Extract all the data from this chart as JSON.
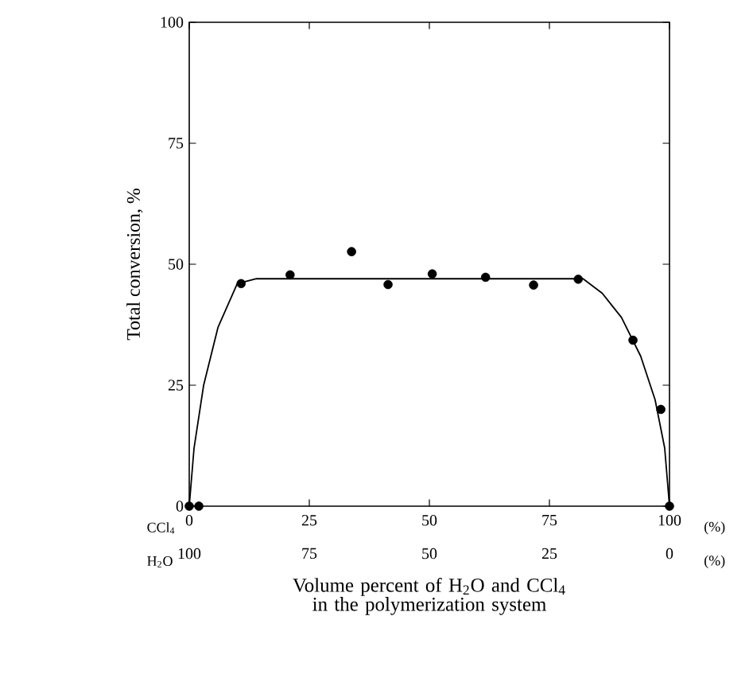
{
  "chart_data": {
    "type": "scatter",
    "xlabel": "Volume percent of H$_{2}$O and CCl$_{4}$ in the polymerization system",
    "ylabel": "Total conversion, %",
    "annotations": [
      "CCl$_{4}$",
      "(%)",
      "H$_{2}$O",
      "(%)"
    ],
    "xlim": [
      0,
      100
    ],
    "ylim": [
      0,
      100
    ],
    "xticks": [
      0,
      25,
      50,
      75,
      100
    ],
    "yticks": [
      0,
      25,
      50,
      75,
      100
    ],
    "x2lim": [
      100,
      0
    ],
    "x2ticks": [
      100,
      75,
      50,
      25,
      0
    ],
    "series": [
      {
        "color": "#000000",
        "marker": "circle",
        "x": [
          0,
          2,
          10.8,
          21,
          33.8,
          41.4,
          50.6,
          61.7,
          71.7,
          81,
          92.4,
          98.2,
          100
        ],
        "values": [
          0,
          0,
          46,
          47.8,
          52.6,
          45.8,
          48,
          47.3,
          45.7,
          46.9,
          34.3,
          20,
          0
        ]
      },
      {
        "type": "line",
        "color": "#000000",
        "line_style": "solid",
        "marker": "none",
        "x": [
          0,
          1,
          3,
          6,
          10,
          14,
          50,
          82,
          86,
          90,
          94,
          97,
          99,
          100
        ],
        "values": [
          0,
          12,
          25,
          37,
          46,
          47,
          47,
          47,
          44,
          39,
          31,
          22,
          12,
          0
        ]
      }
    ]
  }
}
